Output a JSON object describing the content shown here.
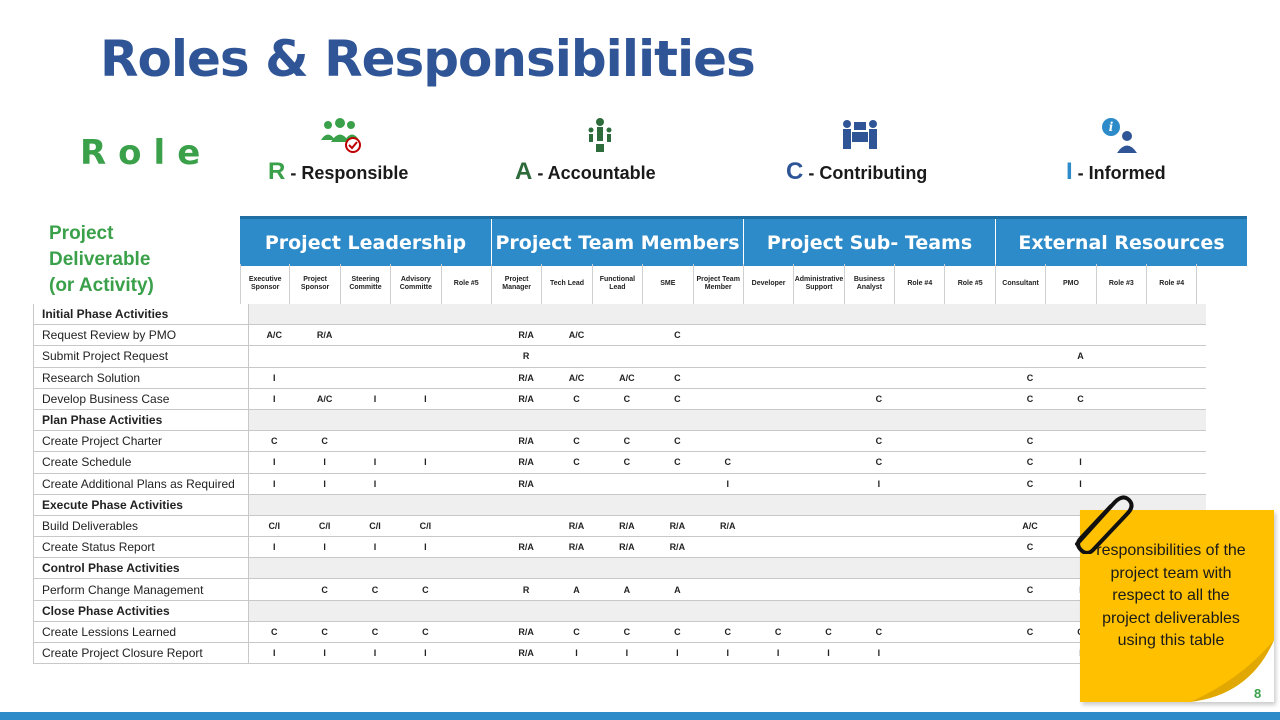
{
  "title": "Roles & Responsibilities",
  "role_word": "Role",
  "legend": [
    {
      "key": "R",
      "label": " - Responsible",
      "icon": "group-check-icon"
    },
    {
      "key": "A",
      "label": " - Accountable",
      "icon": "leader-icon"
    },
    {
      "key": "C",
      "label": " - Contributing",
      "icon": "collaboration-icon"
    },
    {
      "key": "I",
      "label": " - Informed",
      "icon": "info-person-icon"
    }
  ],
  "deliverable_header": [
    "Project",
    "Deliverable",
    "(or Activity)"
  ],
  "groups": [
    "Project Leadership",
    "Project Team Members",
    "Project Sub- Teams",
    "External Resources"
  ],
  "roles": [
    "Executive Sponsor",
    "Project Sponsor",
    "Steering Committe",
    "Advisory Committe",
    "Role #5",
    "Project Manager",
    "Tech Lead",
    "Functional Lead",
    "SME",
    "Project Team Member",
    "Developer",
    "Administrative Support",
    "Business Analyst",
    "Role #4",
    "Role #5",
    "Consultant",
    "PMO",
    "Role #3",
    "Role #4"
  ],
  "rows": [
    {
      "label": "Initial Phase Activities",
      "phase": true,
      "cells": []
    },
    {
      "label": "Request Review by PMO",
      "phase": false,
      "cells": [
        "A/C",
        "R/A",
        "",
        "",
        "",
        "R/A",
        "A/C",
        "",
        "C",
        "",
        "",
        "",
        "",
        "",
        "",
        "",
        "",
        "",
        ""
      ]
    },
    {
      "label": "Submit Project Request",
      "phase": false,
      "cells": [
        "",
        "",
        "",
        "",
        "",
        "R",
        "",
        "",
        "",
        "",
        "",
        "",
        "",
        "",
        "",
        "",
        "A",
        "",
        ""
      ]
    },
    {
      "label": "Research Solution",
      "phase": false,
      "cells": [
        "I",
        "",
        "",
        "",
        "",
        "R/A",
        "A/C",
        "A/C",
        "C",
        "",
        "",
        "",
        "",
        "",
        "",
        "C",
        "",
        "",
        ""
      ]
    },
    {
      "label": "Develop Business Case",
      "phase": false,
      "cells": [
        "I",
        "A/C",
        "I",
        "I",
        "",
        "R/A",
        "C",
        "C",
        "C",
        "",
        "",
        "",
        "C",
        "",
        "",
        "C",
        "C",
        "",
        ""
      ]
    },
    {
      "label": "Plan Phase Activities",
      "phase": true,
      "cells": []
    },
    {
      "label": "Create Project Charter",
      "phase": false,
      "cells": [
        "C",
        "C",
        "",
        "",
        "",
        "R/A",
        "C",
        "C",
        "C",
        "",
        "",
        "",
        "C",
        "",
        "",
        "C",
        "",
        "",
        ""
      ]
    },
    {
      "label": "Create Schedule",
      "phase": false,
      "cells": [
        "I",
        "I",
        "I",
        "I",
        "",
        "R/A",
        "C",
        "C",
        "C",
        "C",
        "",
        "",
        "C",
        "",
        "",
        "C",
        "I",
        "",
        ""
      ]
    },
    {
      "label": "Create Additional Plans as Required",
      "phase": false,
      "cells": [
        "I",
        "I",
        "I",
        "",
        "",
        "R/A",
        "",
        "",
        "",
        "I",
        "",
        "",
        "I",
        "",
        "",
        "C",
        "I",
        "",
        ""
      ]
    },
    {
      "label": "Execute Phase Activities",
      "phase": true,
      "cells": []
    },
    {
      "label": "Build Deliverables",
      "phase": false,
      "cells": [
        "C/I",
        "C/I",
        "C/I",
        "C/I",
        "",
        "",
        "R/A",
        "R/A",
        "R/A",
        "R/A",
        "",
        "",
        "",
        "",
        "",
        "A/C",
        "",
        "",
        ""
      ]
    },
    {
      "label": "Create Status Report",
      "phase": false,
      "cells": [
        "I",
        "I",
        "I",
        "I",
        "",
        "R/A",
        "R/A",
        "R/A",
        "R/A",
        "",
        "",
        "",
        "",
        "",
        "",
        "C",
        "I",
        "",
        ""
      ]
    },
    {
      "label": "Control Phase Activities",
      "phase": true,
      "cells": []
    },
    {
      "label": "Perform Change Management",
      "phase": false,
      "cells": [
        "",
        "C",
        "C",
        "C",
        "",
        "R",
        "A",
        "A",
        "A",
        "",
        "",
        "",
        "",
        "",
        "",
        "C",
        "I",
        "",
        ""
      ]
    },
    {
      "label": "Close Phase Activities",
      "phase": true,
      "cells": []
    },
    {
      "label": "Create Lessions Learned",
      "phase": false,
      "cells": [
        "C",
        "C",
        "C",
        "C",
        "",
        "R/A",
        "C",
        "C",
        "C",
        "C",
        "C",
        "C",
        "C",
        "",
        "",
        "C",
        "C",
        "",
        ""
      ]
    },
    {
      "label": "Create Project Closure Report",
      "phase": false,
      "cells": [
        "I",
        "I",
        "I",
        "I",
        "",
        "R/A",
        "I",
        "I",
        "I",
        "I",
        "I",
        "I",
        "I",
        "",
        "",
        "",
        "I",
        "",
        ""
      ]
    }
  ],
  "note": "responsibilities of the project team with respect to all the project deliverables using this table",
  "page_number": "8",
  "colors": {
    "title": "#2f5597",
    "green": "#3aa04a",
    "header_blue": "#2e8bc9",
    "sticky": "#ffc000"
  }
}
